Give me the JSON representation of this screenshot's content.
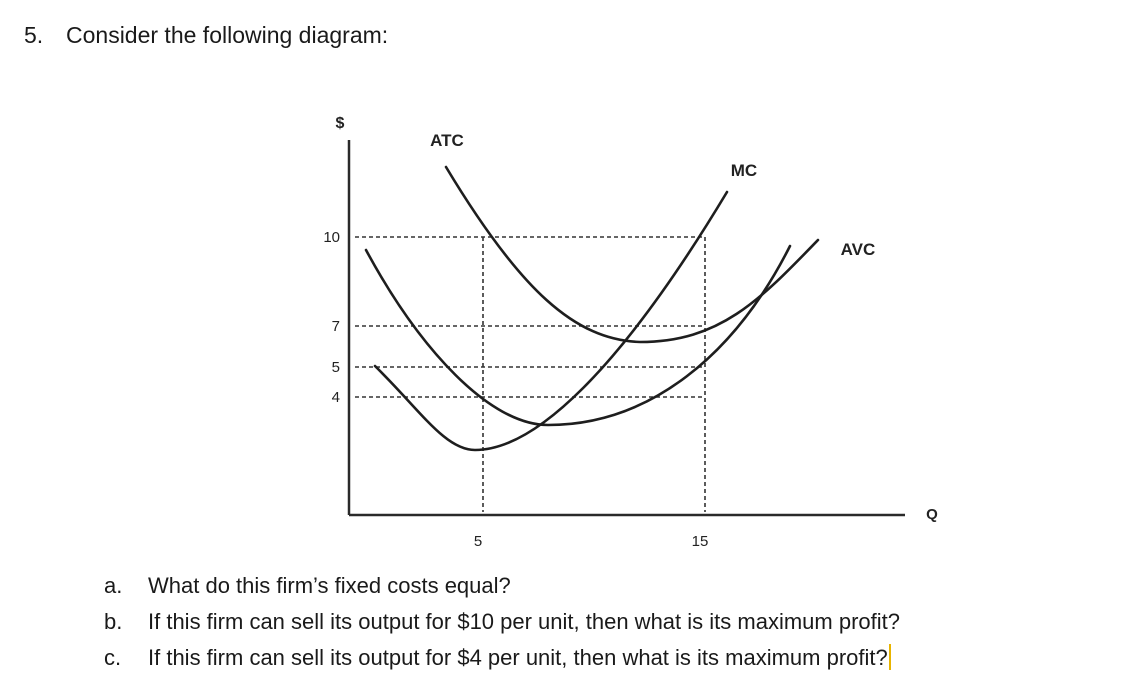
{
  "question": {
    "number": "5.",
    "prompt": "Consider the following diagram:"
  },
  "diagram": {
    "y_axis_label": "$",
    "x_axis_label": "Q",
    "y_ticks": [
      "10",
      "7",
      "5",
      "4"
    ],
    "x_ticks": [
      "5",
      "15"
    ],
    "curves": [
      {
        "name": "ATC",
        "min_point": [
          10,
          7
        ]
      },
      {
        "name": "MC",
        "passes_through": [
          [
            5,
            5
          ],
          [
            15,
            10
          ]
        ]
      },
      {
        "name": "AVC",
        "min_point": [
          7.5,
          4
        ]
      }
    ]
  },
  "subquestions": [
    {
      "marker": "a.",
      "text": "What do this firm’s fixed costs equal?"
    },
    {
      "marker": "b.",
      "text": "If this firm can sell its output for $10 per unit, then what is its maximum profit?"
    },
    {
      "marker": "c.",
      "text": "If this firm can sell its output for $4 per unit, then what is its maximum profit?"
    }
  ],
  "colors": {
    "text_cursor": "#e8b400"
  }
}
